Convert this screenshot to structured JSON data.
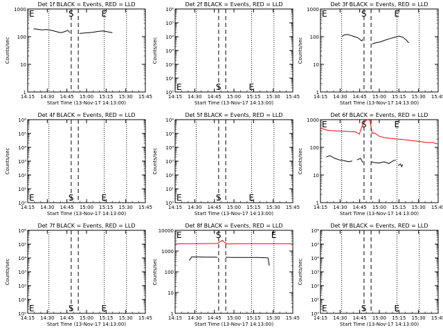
{
  "chart_data": [
    {
      "type": "line",
      "title": "Det 1f BLACK = Events, RED = LLD",
      "xlabel": "Start Time (13-Nov-17 14:13:00)",
      "ylabel": "Counts/sec",
      "yscale": "log",
      "ylim": [
        1,
        1000
      ],
      "ytick_labels": [
        "1",
        "10",
        "100",
        "1000"
      ],
      "xtick_labels": [
        "14:15",
        "14:30",
        "14:45",
        "15:00",
        "15:15",
        "15:30",
        "15:45"
      ],
      "xlim_minutes": [
        0,
        100
      ],
      "markers": [
        {
          "label": "E",
          "x": 0,
          "style": "dotted"
        },
        {
          "label": "S",
          "x": 37,
          "style": "dashed"
        },
        {
          "label": "",
          "x": 43,
          "style": "dashed"
        },
        {
          "label": "E",
          "x": 65,
          "style": "dotted"
        }
      ],
      "dotted_lines": [
        18,
        84
      ],
      "series": [
        {
          "color": "#000000",
          "points": [
            [
              5,
              190
            ],
            [
              8,
              185
            ],
            [
              12,
              175
            ],
            [
              16,
              180
            ],
            [
              20,
              170
            ],
            [
              25,
              150
            ],
            [
              28,
              140
            ],
            [
              31,
              150
            ],
            [
              34,
              170
            ],
            [
              36,
              140
            ]
          ]
        },
        {
          "color": "#000000",
          "points": [
            [
              44,
              130
            ],
            [
              48,
              135
            ],
            [
              52,
              140
            ],
            [
              56,
              145
            ],
            [
              60,
              155
            ],
            [
              64,
              160
            ],
            [
              68,
              150
            ],
            [
              72,
              140
            ]
          ]
        }
      ]
    },
    {
      "type": "line",
      "title": "Det 2f BLACK = Events, RED = LLD",
      "xlabel": "Start Time (13-Nov-17 14:13:00)",
      "ylabel": "Counts/sec",
      "yscale": "log",
      "ylim": [
        1,
        1000000
      ],
      "ytick_labels": [
        "10⁰",
        "10¹",
        "10²",
        "10³",
        "10⁴",
        "10⁵",
        "10⁶"
      ],
      "xtick_labels": [
        "14:15",
        "14:30",
        "14:45",
        "15:00",
        "15:15",
        "15:30",
        "15:45"
      ],
      "xlim_minutes": [
        0,
        100
      ],
      "markers": [
        {
          "label": "E",
          "x": 0,
          "style": "dotted"
        },
        {
          "label": "S",
          "x": 37,
          "style": "dashed"
        },
        {
          "label": "",
          "x": 43,
          "style": "dashed"
        },
        {
          "label": "E",
          "x": 65,
          "style": "dotted"
        }
      ],
      "dotted_lines": [
        18,
        84
      ],
      "series": []
    },
    {
      "type": "line",
      "title": "Det 3f BLACK = Events, RED = LLD",
      "xlabel": "Start Time (13-Nov-17 14:13:00)",
      "ylabel": "Counts/sec",
      "yscale": "log",
      "ylim": [
        1,
        1000
      ],
      "ytick_labels": [
        "1",
        "10",
        "100",
        "1000"
      ],
      "xtick_labels": [
        "14:15",
        "14:30",
        "14:45",
        "15:00",
        "15:15",
        "15:30",
        "15:45"
      ],
      "xlim_minutes": [
        0,
        100
      ],
      "markers": [
        {
          "label": "E",
          "x": 0,
          "style": "dotted"
        },
        {
          "label": "S",
          "x": 37,
          "style": "dashed"
        },
        {
          "label": "",
          "x": 43,
          "style": "dashed"
        },
        {
          "label": "E",
          "x": 65,
          "style": "dotted"
        }
      ],
      "dotted_lines": [
        18,
        84
      ],
      "series": [
        {
          "color": "#000000",
          "points": [
            [
              18,
              100
            ],
            [
              20,
              115
            ],
            [
              23,
              120
            ],
            [
              26,
              110
            ],
            [
              29,
              100
            ],
            [
              32,
              90
            ],
            [
              35,
              70
            ],
            [
              36,
              80
            ]
          ]
        },
        {
          "color": "#000000",
          "points": [
            [
              44,
              55
            ],
            [
              47,
              60
            ],
            [
              51,
              65
            ],
            [
              55,
              75
            ],
            [
              59,
              85
            ],
            [
              63,
              95
            ],
            [
              67,
              105
            ],
            [
              70,
              95
            ],
            [
              73,
              75
            ],
            [
              75,
              60
            ]
          ]
        }
      ]
    },
    {
      "type": "line",
      "title": "Det 4f BLACK = Events, RED = LLD",
      "xlabel": "Start Time (13-Nov-17 14:13:00)",
      "ylabel": "Counts/sec",
      "yscale": "log",
      "ylim": [
        1,
        1000000
      ],
      "ytick_labels": [
        "10⁰",
        "10¹",
        "10²",
        "10³",
        "10⁴",
        "10⁵",
        "10⁶"
      ],
      "xtick_labels": [
        "14:15",
        "14:30",
        "14:45",
        "15:00",
        "15:15",
        "15:30",
        "15:45"
      ],
      "xlim_minutes": [
        0,
        100
      ],
      "markers": [
        {
          "label": "E",
          "x": 0,
          "style": "dotted"
        },
        {
          "label": "S",
          "x": 37,
          "style": "dashed"
        },
        {
          "label": "",
          "x": 43,
          "style": "dashed"
        },
        {
          "label": "E",
          "x": 65,
          "style": "dotted"
        }
      ],
      "dotted_lines": [
        18,
        84
      ],
      "series": []
    },
    {
      "type": "line",
      "title": "Det 5f BLACK = Events, RED = LLD",
      "xlabel": "Start Time (13-Nov-17 14:13:00)",
      "ylabel": "Counts/sec",
      "yscale": "log",
      "ylim": [
        1,
        1000000
      ],
      "ytick_labels": [
        "10⁰",
        "10¹",
        "10²",
        "10³",
        "10⁴",
        "10⁵",
        "10⁶"
      ],
      "xtick_labels": [
        "14:15",
        "14:30",
        "14:45",
        "15:00",
        "15:15",
        "15:30",
        "15:45"
      ],
      "xlim_minutes": [
        0,
        100
      ],
      "markers": [
        {
          "label": "E",
          "x": 0,
          "style": "dotted"
        },
        {
          "label": "S",
          "x": 37,
          "style": "dashed"
        },
        {
          "label": "",
          "x": 43,
          "style": "dashed"
        },
        {
          "label": "E",
          "x": 65,
          "style": "dotted"
        }
      ],
      "dotted_lines": [
        18,
        84
      ],
      "series": []
    },
    {
      "type": "line",
      "title": "Det 6f BLACK = Events, RED = LLD",
      "xlabel": "Start Time (13-Nov-17 14:13:00)",
      "ylabel": "Counts/sec",
      "yscale": "log",
      "ylim": [
        1,
        1000
      ],
      "ytick_labels": [
        "1",
        "10",
        "100",
        "1000"
      ],
      "xtick_labels": [
        "14:15",
        "14:30",
        "14:45",
        "15:00",
        "15:15",
        "15:30",
        "15:45"
      ],
      "xlim_minutes": [
        0,
        100
      ],
      "markers": [
        {
          "label": "E",
          "x": 0,
          "style": "dotted"
        },
        {
          "label": "S",
          "x": 37,
          "style": "dashed"
        },
        {
          "label": "",
          "x": 43,
          "style": "dashed"
        },
        {
          "label": "E",
          "x": 65,
          "style": "dotted"
        }
      ],
      "dotted_lines": [
        18,
        84
      ],
      "series": [
        {
          "color": "#ff0000",
          "points": [
            [
              0,
              500
            ],
            [
              5,
              420
            ],
            [
              10,
              400
            ],
            [
              15,
              390
            ],
            [
              20,
              380
            ],
            [
              25,
              370
            ],
            [
              30,
              360
            ],
            [
              33,
              300
            ],
            [
              36,
              700
            ],
            [
              38,
              900
            ],
            [
              40,
              1000
            ],
            [
              42,
              950
            ],
            [
              44,
              320
            ],
            [
              46,
              330
            ],
            [
              50,
              250
            ],
            [
              55,
              220
            ],
            [
              60,
              210
            ],
            [
              65,
              200
            ],
            [
              70,
              190
            ],
            [
              75,
              180
            ],
            [
              80,
              170
            ],
            [
              85,
              160
            ],
            [
              90,
              150
            ],
            [
              95,
              150
            ],
            [
              100,
              130
            ]
          ]
        },
        {
          "color": "#000000",
          "points": [
            [
              5,
              45
            ],
            [
              8,
              50
            ],
            [
              12,
              40
            ],
            [
              16,
              35
            ],
            [
              20,
              33
            ],
            [
              24,
              30
            ],
            [
              27,
              32
            ]
          ]
        },
        {
          "color": "#000000",
          "points": [
            [
              31,
              35
            ],
            [
              34,
              40
            ],
            [
              36,
              28
            ]
          ]
        },
        {
          "color": "#000000",
          "points": [
            [
              43,
              30
            ],
            [
              46,
              28
            ],
            [
              50,
              27
            ],
            [
              54,
              30
            ],
            [
              58,
              26
            ],
            [
              62,
              33
            ],
            [
              64,
              35
            ]
          ]
        },
        {
          "color": "#000000",
          "points": [
            [
              66,
              22
            ],
            [
              68,
              25
            ],
            [
              69,
              20
            ],
            [
              70,
              24
            ]
          ]
        }
      ]
    },
    {
      "type": "line",
      "title": "Det 7f BLACK = Events, RED = LLD",
      "xlabel": "Start Time (13-Nov-17 14:13:00)",
      "ylabel": "Counts/sec",
      "yscale": "log",
      "ylim": [
        1,
        1000000
      ],
      "ytick_labels": [
        "10⁰",
        "10¹",
        "10²",
        "10³",
        "10⁴",
        "10⁵",
        "10⁶"
      ],
      "xtick_labels": [
        "14:15",
        "14:30",
        "14:45",
        "15:00",
        "15:15",
        "15:30",
        "15:45"
      ],
      "xlim_minutes": [
        0,
        100
      ],
      "markers": [
        {
          "label": "E",
          "x": 0,
          "style": "dotted"
        },
        {
          "label": "S",
          "x": 37,
          "style": "dashed"
        },
        {
          "label": "",
          "x": 43,
          "style": "dashed"
        },
        {
          "label": "E",
          "x": 65,
          "style": "dotted"
        }
      ],
      "dotted_lines": [
        18,
        84
      ],
      "series": []
    },
    {
      "type": "line",
      "title": "Det 8f BLACK = Events, RED = LLD",
      "xlabel": "Start Time (13-Nov-17 14:13:00)",
      "ylabel": "Counts/sec",
      "yscale": "log",
      "ylim": [
        1,
        10000
      ],
      "ytick_labels": [
        "1",
        "10",
        "100",
        "1000",
        "10000"
      ],
      "xtick_labels": [
        "14:15",
        "14:30",
        "14:45",
        "15:00",
        "15:15",
        "15:30",
        "15:45"
      ],
      "xlim_minutes": [
        0,
        100
      ],
      "markers": [
        {
          "label": "E",
          "x": 0,
          "style": "dotted"
        },
        {
          "label": "S",
          "x": 37,
          "style": "dashed"
        },
        {
          "label": "",
          "x": 43,
          "style": "dashed"
        },
        {
          "label": "E",
          "x": 84,
          "style": "dotted"
        }
      ],
      "dotted_lines": [
        18,
        65
      ],
      "series": [
        {
          "color": "#ff0000",
          "points": [
            [
              0,
              2200
            ],
            [
              10,
              2250
            ],
            [
              20,
              2250
            ],
            [
              30,
              2300
            ],
            [
              36,
              2300
            ],
            [
              38,
              2800
            ],
            [
              40,
              3300
            ],
            [
              42,
              2600
            ],
            [
              44,
              2200
            ],
            [
              55,
              2250
            ],
            [
              65,
              2250
            ],
            [
              75,
              2250
            ],
            [
              85,
              2250
            ],
            [
              95,
              2250
            ],
            [
              100,
              2250
            ]
          ]
        },
        {
          "color": "#000000",
          "points": [
            [
              12,
              350
            ],
            [
              14,
              520
            ],
            [
              20,
              520
            ],
            [
              26,
              510
            ],
            [
              33,
              510
            ],
            [
              36,
              500
            ]
          ]
        },
        {
          "color": "#000000",
          "points": [
            [
              43,
              500
            ],
            [
              50,
              490
            ],
            [
              60,
              490
            ],
            [
              70,
              490
            ],
            [
              79,
              470
            ],
            [
              80,
              200
            ]
          ]
        }
      ]
    },
    {
      "type": "line",
      "title": "Det 9f BLACK = Events, RED = LLD",
      "xlabel": "Start Time (13-Nov-17 14:13:00)",
      "ylabel": "Counts/sec",
      "yscale": "log",
      "ylim": [
        1,
        1000000
      ],
      "ytick_labels": [
        "10⁰",
        "10¹",
        "10²",
        "10³",
        "10⁴",
        "10⁵",
        "10⁶"
      ],
      "xtick_labels": [
        "14:15",
        "14:30",
        "14:45",
        "15:00",
        "15:15",
        "15:30",
        "15:45"
      ],
      "xlim_minutes": [
        0,
        100
      ],
      "markers": [
        {
          "label": "E",
          "x": 0,
          "style": "dotted"
        },
        {
          "label": "S",
          "x": 37,
          "style": "dashed"
        },
        {
          "label": "",
          "x": 43,
          "style": "dashed"
        },
        {
          "label": "E",
          "x": 65,
          "style": "dotted"
        }
      ],
      "dotted_lines": [
        18,
        84
      ],
      "series": []
    }
  ]
}
